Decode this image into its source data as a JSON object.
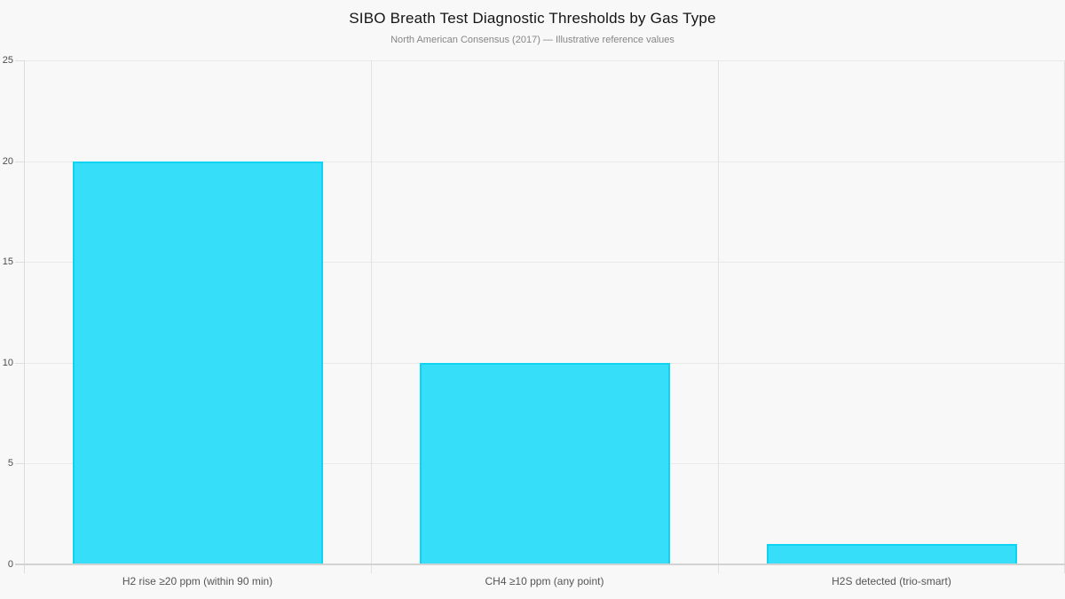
{
  "chart_data": {
    "type": "bar",
    "title": "SIBO Breath Test Diagnostic Thresholds by Gas Type",
    "subtitle": "North American Consensus (2017) — Illustrative reference values",
    "categories": [
      "H2 rise ≥20 ppm (within 90 min)",
      "CH4 ≥10 ppm (any point)",
      "H2S detected (trio-smart)"
    ],
    "values": [
      20,
      10,
      1
    ],
    "xlabel": "",
    "ylabel": "",
    "ylim": [
      0,
      25
    ],
    "yticks": [
      0,
      5,
      10,
      15,
      20,
      25
    ],
    "grid": true,
    "legend": false,
    "bar_width_fraction": 0.72
  },
  "colors": {
    "background": "#f8f8f8",
    "bar_fill": "#36def9",
    "bar_border": "#0fd3f2",
    "gridline": "#e9e9e9",
    "category_separator": "#e2e2e2",
    "axis_line": "#d2d2d2",
    "title_text": "#141414",
    "subtitle_text": "#868686",
    "tick_text": "#4d4d4d",
    "category_text": "#555555"
  }
}
